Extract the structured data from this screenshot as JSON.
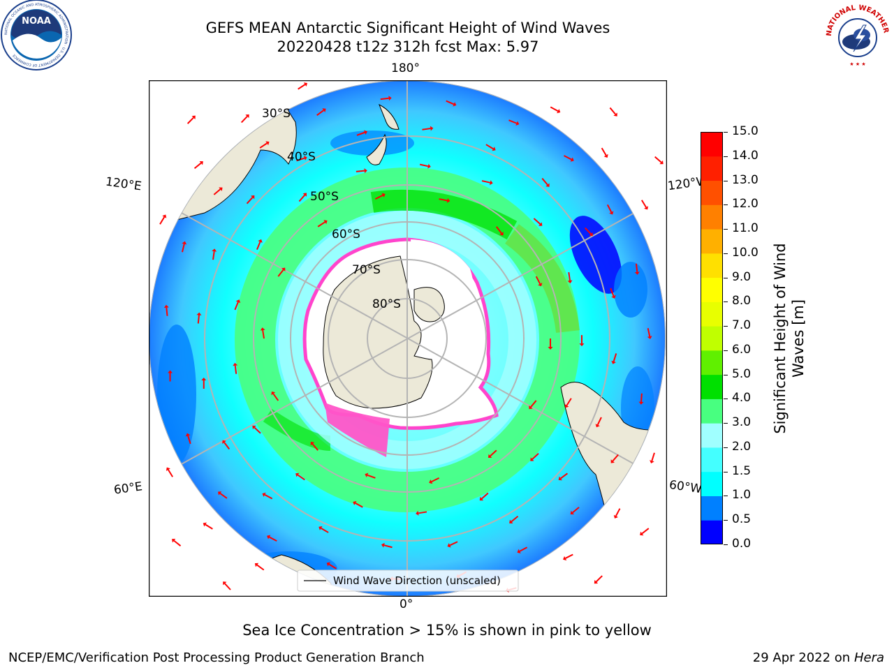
{
  "header": {
    "title_line1": "GEFS MEAN Antarctic Significant Height of Wind Waves",
    "title_line2": "20220428 t12z 312h fcst   Max: 5.97"
  },
  "logos": {
    "left": "NOAA",
    "right": "NATIONAL WEATHER SERVICE",
    "left_ring_text": "NATIONAL OCEANIC AND ATMOSPHERIC ADMINISTRATION · U.S. DEPARTMENT OF COMMERCE"
  },
  "map": {
    "longitude_labels": {
      "top": "180°",
      "bottom": "0°",
      "left_upper": "120°E",
      "left_lower": "60°E",
      "right_upper": "120°W",
      "right_lower": "60°W"
    },
    "latitude_labels": [
      "30°S",
      "40°S",
      "50°S",
      "60°S",
      "70°S",
      "80°S"
    ],
    "legend": "Wind Wave Direction (unscaled)",
    "colors": {
      "land": "#ece9d8",
      "ocean_background": "#ffffff",
      "grid": "#b4b4b4",
      "arrow": "#ff0000",
      "sea_ice": "#ff44cc"
    }
  },
  "colorbar": {
    "label_line1": "Significant Height of Wind",
    "label_line2": "Waves [m]",
    "ticks": [
      "0.0",
      "0.5",
      "1.0",
      "1.5",
      "2.0",
      "3.0",
      "4.0",
      "5.0",
      "6.0",
      "7.0",
      "8.0",
      "9.0",
      "10.0",
      "11.0",
      "12.0",
      "13.0",
      "14.0",
      "15.0"
    ],
    "colors": [
      "#0000ff",
      "#0080ff",
      "#00ffff",
      "#44ffff",
      "#a0ffff",
      "#48ff80",
      "#00e000",
      "#60f000",
      "#c0ff00",
      "#e8ff00",
      "#ffff00",
      "#ffe000",
      "#ffb000",
      "#ff8000",
      "#ff5000",
      "#ff2000",
      "#ff0000"
    ]
  },
  "footer": {
    "sea_ice_note": "Sea Ice Concentration > 15% is shown in pink to yellow",
    "branch": "NCEP/EMC/Verification Post Processing Product Generation Branch",
    "date": "29 Apr 2022 on ",
    "machine": "Hera"
  }
}
